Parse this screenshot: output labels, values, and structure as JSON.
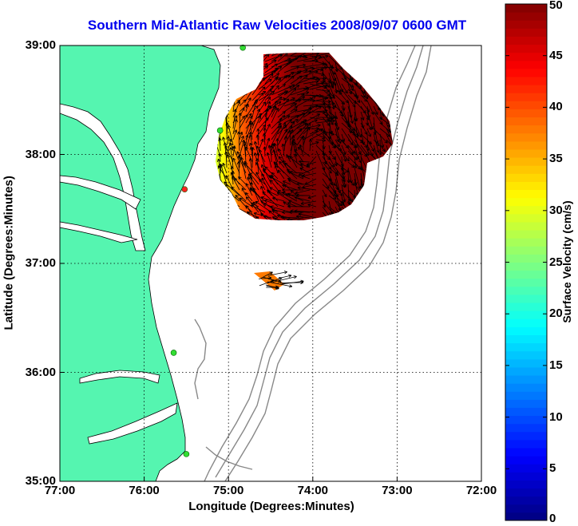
{
  "title": "Southern Mid-Atlantic Raw Velocities 2008/09/07 0600 GMT",
  "map": {
    "xlabel": "Longitude (Degrees:Minutes)",
    "ylabel": "Latitude (Degrees:Minutes)",
    "xlim": [
      -77,
      -72
    ],
    "ylim": [
      35,
      39
    ],
    "xticks": [
      {
        "value": -77,
        "label": "77:00"
      },
      {
        "value": -76,
        "label": "76:00"
      },
      {
        "value": -75,
        "label": "75:00"
      },
      {
        "value": -74,
        "label": "74:00"
      },
      {
        "value": -73,
        "label": "73:00"
      },
      {
        "value": -72,
        "label": "72:00"
      }
    ],
    "yticks": [
      {
        "value": 39,
        "label": "39:00"
      },
      {
        "value": 38,
        "label": "38:00"
      },
      {
        "value": 37,
        "label": "37:00"
      },
      {
        "value": 36,
        "label": "36:00"
      },
      {
        "value": 35,
        "label": "35:00"
      }
    ],
    "grid": "dotted",
    "land_color": "#55f5b0",
    "water_color": "#ffffff",
    "isobath_color": "#888888",
    "arrow_color": "#000000",
    "stations": [
      {
        "lon": -74.83,
        "lat": 38.98,
        "color": "#33dd33"
      },
      {
        "lon": -75.1,
        "lat": 38.22,
        "color": "#33dd33"
      },
      {
        "lon": -75.52,
        "lat": 37.68,
        "color": "#ff2222"
      },
      {
        "lon": -75.65,
        "lat": 36.18,
        "color": "#33dd33"
      },
      {
        "lon": -75.5,
        "lat": 35.25,
        "color": "#33dd33"
      }
    ]
  },
  "colorbar": {
    "label": "Surface Velocity (cm/s)",
    "min": 0,
    "max": 50,
    "ticks": [
      "0",
      "5",
      "10",
      "15",
      "20",
      "25",
      "30",
      "35",
      "40",
      "45",
      "50"
    ],
    "colormap": "jet"
  }
}
